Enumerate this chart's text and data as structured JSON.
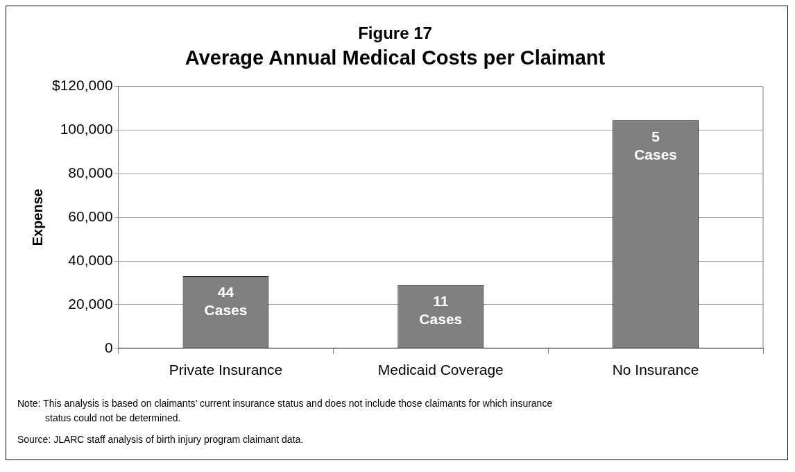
{
  "chart_data": {
    "type": "bar",
    "title": "Figure 17",
    "subtitle": "Average Annual Medical Costs per Claimant",
    "ylabel": "Expense",
    "categories": [
      "Private Insurance",
      "Medicaid Coverage",
      "No Insurance"
    ],
    "values": [
      33000,
      29000,
      104500
    ],
    "color": "#808080",
    "ylim": [
      0,
      120000
    ],
    "yticks": [
      {
        "value": 0,
        "label": "0"
      },
      {
        "value": 20000,
        "label": "20,000"
      },
      {
        "value": 40000,
        "label": "40,000"
      },
      {
        "value": 60000,
        "label": "60,000"
      },
      {
        "value": 80000,
        "label": "80,000"
      },
      {
        "value": 100000,
        "label": "100,000"
      },
      {
        "value": 120000,
        "label": "$120,000"
      }
    ],
    "grid": "y",
    "legend": false,
    "annotations": [
      {
        "text": "44\nCases",
        "x": "Private Insurance",
        "y": 33000
      },
      {
        "text": "11\nCases",
        "x": "Medicaid Coverage",
        "y": 29000
      },
      {
        "text": "5\nCases",
        "x": "No Insurance",
        "y": 104500
      },
      "Note:  This analysis is based on claimants’ current insurance status and does not include those claimants for which insurance status could not be determined.",
      "Source:  JLARC staff analysis of birth injury program claimant data."
    ]
  }
}
